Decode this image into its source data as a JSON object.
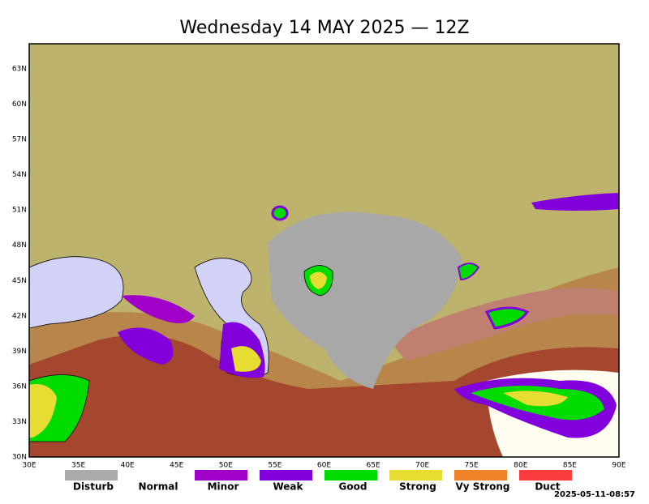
{
  "title": "Wednesday 14 MAY 2025 — 12Z",
  "lat_labels": [
    "30N",
    "33N",
    "36N",
    "39N",
    "42N",
    "45N",
    "48N",
    "51N",
    "54N",
    "57N",
    "60N",
    "63N"
  ],
  "lon_labels": [
    "30E",
    "35E",
    "40E",
    "45E",
    "50E",
    "55E",
    "60E",
    "65E",
    "70E",
    "75E",
    "80E",
    "85E",
    "90E"
  ],
  "legend": [
    {
      "name": "Disturb",
      "color": "#aaaaaa"
    },
    {
      "name": "Normal",
      "color": "#ffffff"
    },
    {
      "name": "Minor",
      "color": "#a000c8"
    },
    {
      "name": "Weak",
      "color": "#8200dc"
    },
    {
      "name": "Good",
      "color": "#00dc00"
    },
    {
      "name": "Strong",
      "color": "#e6dc32"
    },
    {
      "name": "Vy Strong",
      "color": "#f08228"
    },
    {
      "name": "Duct",
      "color": "#fa3c3c"
    }
  ],
  "timestamp": "2025-05-11-08:57"
}
